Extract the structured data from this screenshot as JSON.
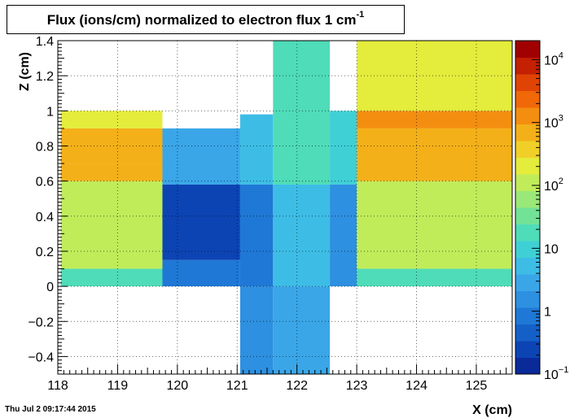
{
  "title": {
    "main": "Flux (ions/cm) normalized to electron flux 1 cm",
    "superscript": "-1"
  },
  "timestamp": "Thu Jul  2 09:17:44 2015",
  "colors": {
    "palette": [
      "#0b2a9a",
      "#0d44b4",
      "#1560c8",
      "#1f78d6",
      "#2e90e0",
      "#3aa6e8",
      "#3dbde6",
      "#3fd0d6",
      "#4fdcb8",
      "#72e296",
      "#9ae878",
      "#c0ec5a",
      "#e4ec3c",
      "#f0d028",
      "#f4b018",
      "#f48e10",
      "#f06808",
      "#e04404",
      "#c42002",
      "#a00000"
    ],
    "background": "#ffffff"
  },
  "chart_data": {
    "type": "heatmap",
    "title": "Flux (ions/cm) normalized to electron flux 1 cm^-1",
    "xlabel": "X (cm)",
    "ylabel": "Z (cm)",
    "xlim": [
      118,
      125.6
    ],
    "ylim": [
      -0.5,
      1.4
    ],
    "x_ticks": [
      "118",
      "119",
      "120",
      "121",
      "122",
      "123",
      "124",
      "125"
    ],
    "y_ticks": [
      "−0.4",
      "−0.2",
      "0",
      "0.2",
      "0.4",
      "0.6",
      "0.8",
      "1",
      "1.2",
      "1.4"
    ],
    "grid": true,
    "colorbar": {
      "scale": "log",
      "range": [
        0.1,
        20000
      ],
      "ticks": [
        {
          "base": "10",
          "exp": "−1",
          "value": 0.1
        },
        {
          "base": "1",
          "exp": "",
          "value": 1
        },
        {
          "base": "10",
          "exp": "",
          "value": 10
        },
        {
          "base": "10",
          "exp": "2",
          "value": 100
        },
        {
          "base": "10",
          "exp": "3",
          "value": 1000
        },
        {
          "base": "10",
          "exp": "4",
          "value": 10000
        }
      ]
    },
    "regions": [
      {
        "x": [
          118.05,
          119.75
        ],
        "z": [
          0.0,
          0.1
        ],
        "flux": 20
      },
      {
        "x": [
          118.05,
          119.75
        ],
        "z": [
          0.1,
          0.6
        ],
        "flux": 100
      },
      {
        "x": [
          118.05,
          119.75
        ],
        "z": [
          0.6,
          0.7
        ],
        "flux": 700
      },
      {
        "x": [
          118.05,
          119.75
        ],
        "z": [
          0.7,
          0.9
        ],
        "flux": 800
      },
      {
        "x": [
          118.05,
          119.75
        ],
        "z": [
          0.9,
          1.0
        ],
        "flux": 200
      },
      {
        "x": [
          119.75,
          121.05
        ],
        "z": [
          0.0,
          0.15
        ],
        "flux": 1
      },
      {
        "x": [
          119.75,
          121.05
        ],
        "z": [
          0.15,
          0.58
        ],
        "flux": 0.3
      },
      {
        "x": [
          119.75,
          121.05
        ],
        "z": [
          0.58,
          0.9
        ],
        "flux": 3
      },
      {
        "x": [
          121.05,
          121.6
        ],
        "z": [
          -0.5,
          0.0
        ],
        "flux": 2
      },
      {
        "x": [
          121.05,
          121.6
        ],
        "z": [
          0.0,
          0.58
        ],
        "flux": 1
      },
      {
        "x": [
          121.05,
          121.6
        ],
        "z": [
          0.58,
          0.98
        ],
        "flux": 6
      },
      {
        "x": [
          121.6,
          122.55
        ],
        "z": [
          -0.5,
          0.0
        ],
        "flux": 3
      },
      {
        "x": [
          121.6,
          122.55
        ],
        "z": [
          0.0,
          0.58
        ],
        "flux": 4
      },
      {
        "x": [
          121.6,
          122.55
        ],
        "z": [
          0.58,
          1.4
        ],
        "flux": 15
      },
      {
        "x": [
          122.55,
          123.0
        ],
        "z": [
          0.0,
          0.58
        ],
        "flux": 2
      },
      {
        "x": [
          122.55,
          123.0
        ],
        "z": [
          0.58,
          1.0
        ],
        "flux": 10
      },
      {
        "x": [
          123.0,
          125.6
        ],
        "z": [
          0.0,
          0.1
        ],
        "flux": 20
      },
      {
        "x": [
          123.0,
          125.6
        ],
        "z": [
          0.1,
          0.6
        ],
        "flux": 100
      },
      {
        "x": [
          123.0,
          125.6
        ],
        "z": [
          0.6,
          0.9
        ],
        "flux": 800
      },
      {
        "x": [
          123.0,
          125.6
        ],
        "z": [
          0.9,
          1.0
        ],
        "flux": 1500
      },
      {
        "x": [
          123.0,
          125.6
        ],
        "z": [
          1.0,
          1.4
        ],
        "flux": 200
      }
    ]
  }
}
